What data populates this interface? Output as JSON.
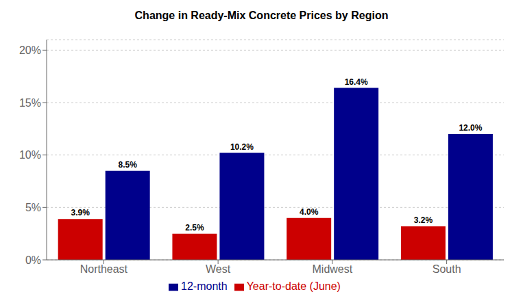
{
  "chart_data": {
    "type": "bar",
    "title": "Change in Ready-Mix Concrete Prices by Region",
    "categories": [
      "Northeast",
      "West",
      "Midwest",
      "South"
    ],
    "series": [
      {
        "name": "Year-to-date (June)",
        "color": "#cc0000",
        "values": [
          3.9,
          2.5,
          4.0,
          3.2
        ],
        "value_labels": [
          "3.9%",
          "2.5%",
          "4.0%",
          "3.2%"
        ]
      },
      {
        "name": "12-month",
        "color": "#00008b",
        "values": [
          8.5,
          10.2,
          16.4,
          12.0
        ],
        "value_labels": [
          "8.5%",
          "10.2%",
          "16.4%",
          "12.0%"
        ]
      }
    ],
    "ylim": [
      0,
      21
    ],
    "yticks": [
      {
        "value": 0,
        "label": "0%"
      },
      {
        "value": 5,
        "label": "5%"
      },
      {
        "value": 10,
        "label": "10%"
      },
      {
        "value": 15,
        "label": "15%"
      },
      {
        "value": 20,
        "label": "20%"
      }
    ],
    "grid": true,
    "legend": "bottom",
    "data_labels": true
  }
}
